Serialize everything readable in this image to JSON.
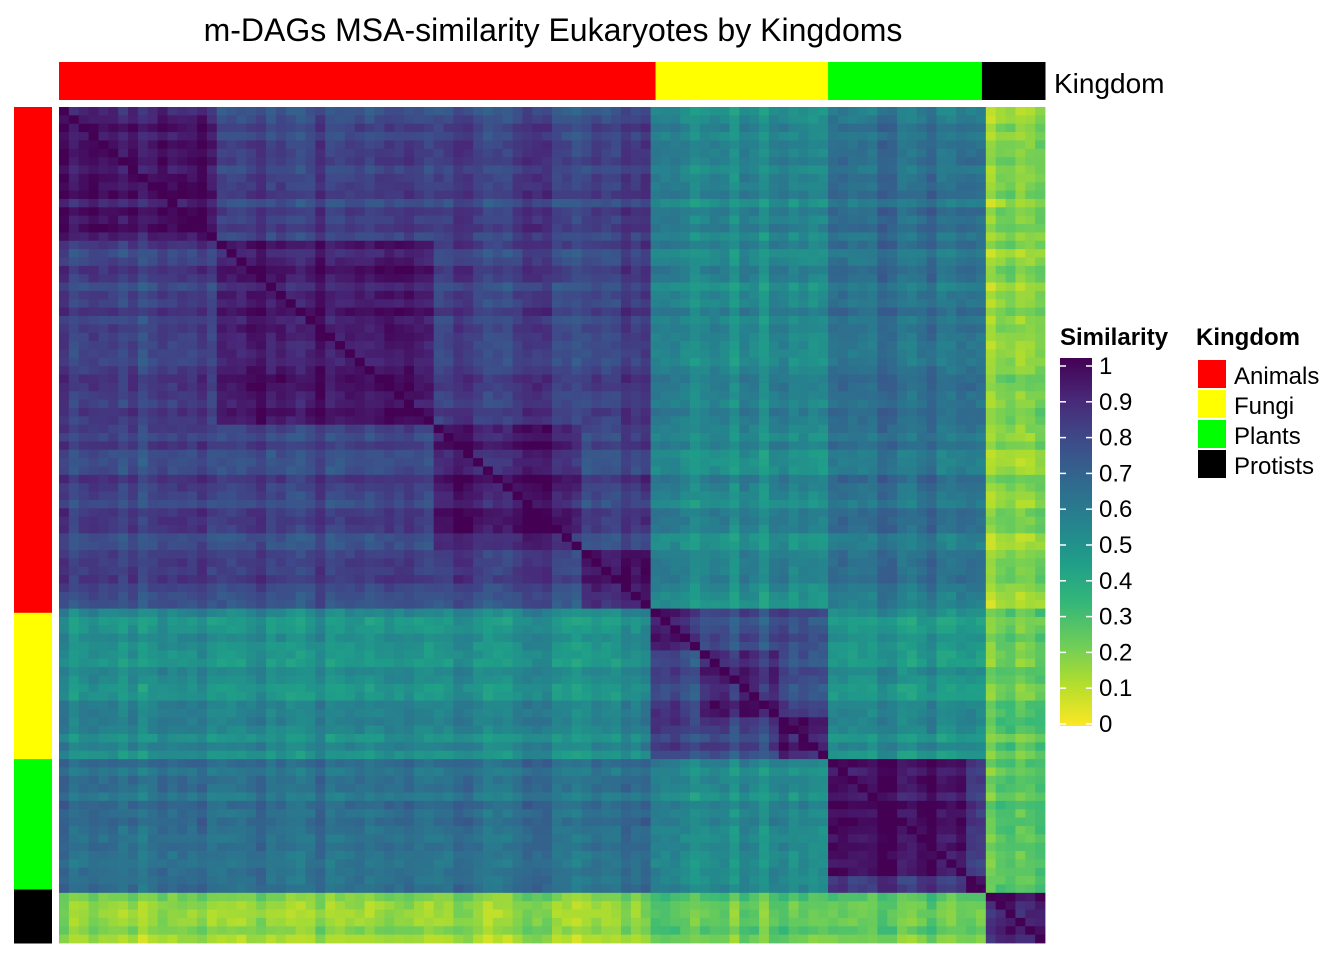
{
  "chart_data": {
    "type": "heatmap",
    "title": "m-DAGs MSA-similarity Eukaryotes by Kingdoms",
    "annotation_label": "Kingdom",
    "groups": [
      {
        "name": "Animals",
        "fraction": 0.605,
        "color": "#FF0000"
      },
      {
        "name": "Fungi",
        "fraction": 0.175,
        "color": "#FFFF00"
      },
      {
        "name": "Plants",
        "fraction": 0.156,
        "color": "#00FF00"
      },
      {
        "name": "Protists",
        "fraction": 0.064,
        "color": "#000000"
      }
    ],
    "blocks": [
      {
        "group": "Animals",
        "fraction": 0.16
      },
      {
        "group": "Animals",
        "fraction": 0.22
      },
      {
        "group": "Animals",
        "fraction": 0.15
      },
      {
        "group": "Animals",
        "fraction": 0.075
      },
      {
        "group": "Fungi",
        "fraction": 0.05
      },
      {
        "group": "Fungi",
        "fraction": 0.08
      },
      {
        "group": "Fungi",
        "fraction": 0.045
      },
      {
        "group": "Plants",
        "fraction": 0.14
      },
      {
        "group": "Plants",
        "fraction": 0.016
      },
      {
        "group": "Protists",
        "fraction": 0.064
      }
    ],
    "value_legend": {
      "title": "Similarity",
      "min": 0,
      "max": 1,
      "ticks": [
        "1",
        "0.9",
        "0.8",
        "0.7",
        "0.6",
        "0.5",
        "0.4",
        "0.3",
        "0.2",
        "0.1",
        "0"
      ],
      "palette": "viridis"
    },
    "group_legend": {
      "title": "Kingdom",
      "entries": [
        "Animals",
        "Fungi",
        "Plants",
        "Protists"
      ]
    },
    "colors": {
      "viridis": [
        "#440154",
        "#482878",
        "#3E4A89",
        "#31688E",
        "#26828E",
        "#1F9E89",
        "#35B779",
        "#6DCD59",
        "#B4DE2C",
        "#FDE725"
      ],
      "Animals": "#FF0000",
      "Fungi": "#FFFF00",
      "Plants": "#00FF00",
      "Protists": "#000000"
    }
  }
}
